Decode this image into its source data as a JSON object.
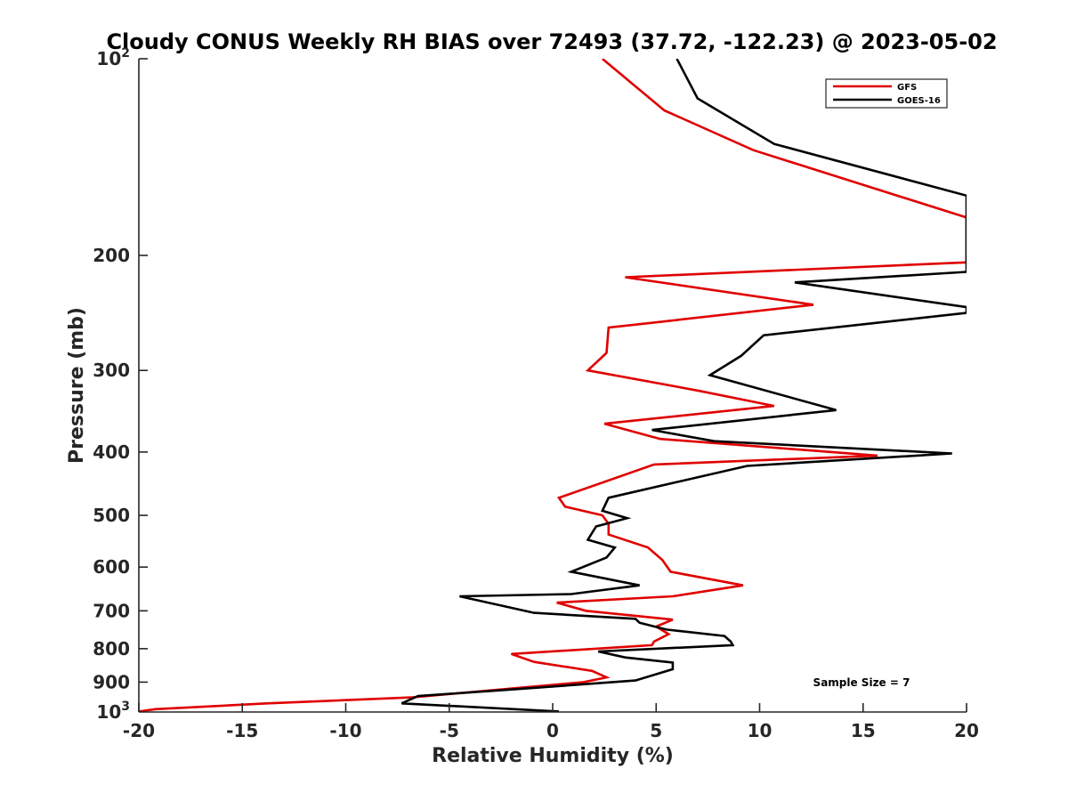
{
  "chart_data": {
    "type": "line",
    "title": "Cloudy CONUS Weekly RH BIAS over 72493 (37.72, -122.23) @ 2023-05-02",
    "xlabel": "Relative Humidity (%)",
    "ylabel": "Pressure (mb)",
    "xlim": [
      -20,
      20
    ],
    "ylim": [
      100,
      1000
    ],
    "y_scale": "log",
    "y_reversed": true,
    "grid": false,
    "legend_position": "top-right",
    "x_ticks": [
      -20,
      -15,
      -10,
      -5,
      0,
      5,
      10,
      15,
      20
    ],
    "x_tick_labels": [
      "-20",
      "-15",
      "-10",
      "-5",
      "0",
      "5",
      "10",
      "15",
      "20"
    ],
    "y_ticks": [
      200,
      300,
      400,
      500,
      600,
      700,
      800,
      900
    ],
    "y_tick_labels": [
      "200",
      "300",
      "400",
      "500",
      "600",
      "700",
      "800",
      "900"
    ],
    "y_top_label": {
      "base": "10",
      "exp": "2"
    },
    "y_bottom_label": {
      "base": "10",
      "exp": "3"
    },
    "annotation": "Sample Size = 7",
    "series": [
      {
        "name": "GFS",
        "color": "#e00000",
        "points": [
          [
            2.4,
            100
          ],
          [
            5.4,
            120
          ],
          [
            9.7,
            138
          ],
          [
            20.0,
            175
          ],
          [
            20.0,
            205
          ],
          [
            3.5,
            216
          ],
          [
            12.6,
            238
          ],
          [
            2.7,
            258
          ],
          [
            2.6,
            282
          ],
          [
            1.7,
            300
          ],
          [
            7.0,
            322
          ],
          [
            10.7,
            340
          ],
          [
            2.5,
            362
          ],
          [
            5.2,
            382
          ],
          [
            15.7,
            405
          ],
          [
            4.9,
            418
          ],
          [
            0.3,
            470
          ],
          [
            0.6,
            485
          ],
          [
            2.4,
            500
          ],
          [
            2.7,
            515
          ],
          [
            2.7,
            535
          ],
          [
            4.6,
            560
          ],
          [
            5.3,
            585
          ],
          [
            5.7,
            610
          ],
          [
            9.2,
            640
          ],
          [
            5.8,
            665
          ],
          [
            0.2,
            680
          ],
          [
            1.6,
            700
          ],
          [
            5.8,
            722
          ],
          [
            5.0,
            740
          ],
          [
            5.6,
            760
          ],
          [
            4.9,
            780
          ],
          [
            4.8,
            790
          ],
          [
            -2.0,
            815
          ],
          [
            -0.9,
            838
          ],
          [
            1.9,
            865
          ],
          [
            2.6,
            885
          ],
          [
            1.5,
            900
          ],
          [
            -1.9,
            920
          ],
          [
            -6.8,
            950
          ],
          [
            -13.8,
            970
          ],
          [
            -19.2,
            990
          ],
          [
            -20.0,
            998
          ]
        ]
      },
      {
        "name": "GOES-16",
        "color": "#000000",
        "points": [
          [
            6.0,
            100
          ],
          [
            7.0,
            115
          ],
          [
            10.7,
            135
          ],
          [
            20.0,
            162
          ],
          [
            20.0,
            212
          ],
          [
            11.7,
            220
          ],
          [
            20.0,
            240
          ],
          [
            20.0,
            245
          ],
          [
            10.2,
            265
          ],
          [
            9.1,
            285
          ],
          [
            7.6,
            305
          ],
          [
            13.7,
            345
          ],
          [
            4.8,
            370
          ],
          [
            7.8,
            385
          ],
          [
            19.3,
            402
          ],
          [
            9.4,
            420
          ],
          [
            2.7,
            470
          ],
          [
            2.4,
            492
          ],
          [
            3.6,
            505
          ],
          [
            2.1,
            520
          ],
          [
            1.7,
            545
          ],
          [
            3.0,
            560
          ],
          [
            2.6,
            580
          ],
          [
            0.9,
            610
          ],
          [
            4.2,
            640
          ],
          [
            0.9,
            660
          ],
          [
            -4.5,
            665
          ],
          [
            -0.9,
            705
          ],
          [
            4.0,
            720
          ],
          [
            4.2,
            730
          ],
          [
            5.5,
            748
          ],
          [
            8.3,
            765
          ],
          [
            8.6,
            780
          ],
          [
            8.7,
            790
          ],
          [
            2.2,
            808
          ],
          [
            3.5,
            825
          ],
          [
            5.8,
            840
          ],
          [
            5.8,
            860
          ],
          [
            4.0,
            895
          ],
          [
            -2.2,
            925
          ],
          [
            -6.5,
            945
          ],
          [
            -7.3,
            970
          ],
          [
            0.3,
            998
          ]
        ]
      }
    ]
  }
}
